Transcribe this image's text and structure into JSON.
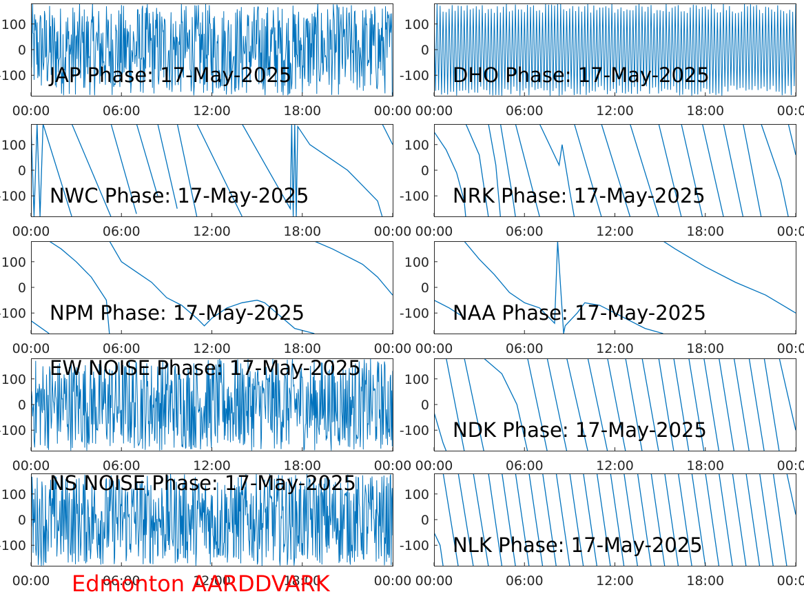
{
  "footer": {
    "text": "Edmonton AARDDVARK",
    "color": "#ff0000"
  },
  "series_color": "#0072bd",
  "chart_data": [
    {
      "type": "line",
      "title": "JAP Phase: 17-May-2025",
      "station": "JAP",
      "xticks": [
        "00:00",
        "06:00",
        "12:00",
        "18:00",
        "00:00"
      ],
      "yticks": [
        "100",
        "0",
        "-100"
      ],
      "xlim_hours": [
        0,
        24
      ],
      "ylim": [
        -180,
        180
      ],
      "signal_description": "noise-like phase, rapid wraps across full range"
    },
    {
      "type": "line",
      "title": "DHO Phase: 17-May-2025",
      "station": "DHO",
      "xticks": [
        "00:00",
        "06:00",
        "12:00",
        "18:00",
        "00:00"
      ],
      "yticks": [
        "100",
        "0",
        "-100"
      ],
      "xlim_hours": [
        0,
        24
      ],
      "ylim": [
        -180,
        180
      ],
      "signal_description": "dense regular phase wraps, approx. 120 per day"
    },
    {
      "type": "line",
      "title": "NWC Phase: 17-May-2025",
      "station": "NWC",
      "xticks": [
        "00:00",
        "06:00",
        "12:00",
        "18:00",
        "00:00"
      ],
      "yticks": [
        "100",
        "0",
        "-100"
      ],
      "xlim_hours": [
        0,
        24
      ],
      "ylim": [
        -180,
        180
      ],
      "points": [
        [
          0,
          180
        ],
        [
          0.2,
          -180
        ],
        [
          0.4,
          180
        ],
        [
          0.6,
          -180
        ],
        [
          0.8,
          180
        ],
        [
          2.7,
          -180
        ],
        [
          2.71,
          180
        ],
        [
          5.3,
          -180
        ],
        [
          5.31,
          180
        ],
        [
          7,
          -170
        ],
        [
          7.01,
          180
        ],
        [
          8.4,
          -100
        ],
        [
          8.41,
          180
        ],
        [
          9.7,
          -150
        ],
        [
          9.71,
          180
        ],
        [
          11,
          -180
        ],
        [
          11.01,
          180
        ],
        [
          14,
          -180
        ],
        [
          14.01,
          180
        ],
        [
          17.2,
          -150
        ],
        [
          17.3,
          180
        ],
        [
          17.4,
          -180
        ],
        [
          17.5,
          180
        ],
        [
          17.6,
          -180
        ],
        [
          17.7,
          170
        ],
        [
          18.5,
          100
        ],
        [
          20,
          40
        ],
        [
          21,
          0
        ],
        [
          22,
          -60
        ],
        [
          23,
          -120
        ],
        [
          23.3,
          -180
        ],
        [
          23.31,
          180
        ],
        [
          24,
          100
        ]
      ]
    },
    {
      "type": "line",
      "title": "NRK Phase: 17-May-2025",
      "station": "NRK",
      "xticks": [
        "00:00",
        "06:00",
        "12:00",
        "18:00",
        "00:00"
      ],
      "yticks": [
        "100",
        "0",
        "-100"
      ],
      "xlim_hours": [
        0,
        24
      ],
      "ylim": [
        -180,
        180
      ],
      "points": [
        [
          0,
          150
        ],
        [
          0.8,
          80
        ],
        [
          1.5,
          -10
        ],
        [
          2,
          -120
        ],
        [
          2.1,
          -180
        ],
        [
          2.11,
          180
        ],
        [
          3,
          60
        ],
        [
          3.6,
          -180
        ],
        [
          3.61,
          180
        ],
        [
          4.1,
          20
        ],
        [
          4.4,
          -180
        ],
        [
          4.41,
          180
        ],
        [
          5.2,
          -100
        ],
        [
          5.4,
          -180
        ],
        [
          5.41,
          180
        ],
        [
          7,
          -180
        ],
        [
          7.01,
          180
        ],
        [
          8.3,
          20
        ],
        [
          8.5,
          100
        ],
        [
          9,
          -80
        ],
        [
          9.3,
          -180
        ],
        [
          9.31,
          180
        ],
        [
          11.1,
          -180
        ],
        [
          11.11,
          180
        ],
        [
          13,
          -180
        ],
        [
          13.01,
          180
        ],
        [
          14.9,
          -180
        ],
        [
          14.91,
          180
        ],
        [
          16.4,
          -180
        ],
        [
          16.41,
          180
        ],
        [
          17.8,
          -180
        ],
        [
          17.81,
          180
        ],
        [
          19.2,
          -180
        ],
        [
          19.21,
          180
        ],
        [
          20.5,
          -180
        ],
        [
          20.51,
          180
        ],
        [
          21.7,
          -180
        ],
        [
          21.71,
          180
        ],
        [
          23,
          -40
        ],
        [
          23.5,
          -180
        ],
        [
          23.51,
          180
        ],
        [
          24,
          60
        ]
      ]
    },
    {
      "type": "line",
      "title": "NPM Phase: 17-May-2025",
      "station": "NPM",
      "xticks": [
        "00:00",
        "06:00",
        "12:00",
        "18:00",
        "00:00"
      ],
      "yticks": [
        "100",
        "0",
        "-100"
      ],
      "xlim_hours": [
        0,
        24
      ],
      "ylim": [
        -180,
        180
      ],
      "points": [
        [
          0,
          -130
        ],
        [
          1.2,
          -180
        ],
        [
          1.21,
          180
        ],
        [
          2,
          150
        ],
        [
          3,
          100
        ],
        [
          4,
          40
        ],
        [
          5,
          -50
        ],
        [
          5.2,
          -180
        ],
        [
          5.21,
          180
        ],
        [
          6,
          100
        ],
        [
          7,
          60
        ],
        [
          8,
          20
        ],
        [
          9,
          -40
        ],
        [
          10,
          -70
        ],
        [
          11,
          -120
        ],
        [
          11.5,
          -150
        ],
        [
          12,
          -120
        ],
        [
          13,
          -80
        ],
        [
          14,
          -60
        ],
        [
          15,
          -50
        ],
        [
          15.5,
          -60
        ],
        [
          16.5,
          -110
        ],
        [
          17.5,
          -160
        ],
        [
          18.8,
          -180
        ],
        [
          18.81,
          180
        ],
        [
          20,
          150
        ],
        [
          21,
          120
        ],
        [
          22,
          90
        ],
        [
          23,
          40
        ],
        [
          24,
          -30
        ]
      ]
    },
    {
      "type": "line",
      "title": "NAA Phase: 17-May-2025",
      "station": "NAA",
      "xticks": [
        "00:00",
        "06:00",
        "12:00",
        "18:00",
        "00:00"
      ],
      "yticks": [
        "100",
        "0",
        "-100"
      ],
      "xlim_hours": [
        0,
        24
      ],
      "ylim": [
        -180,
        180
      ],
      "points": [
        [
          0,
          -50
        ],
        [
          1,
          -80
        ],
        [
          1.8,
          -110
        ],
        [
          1.81,
          180
        ],
        [
          2,
          180
        ],
        [
          3,
          110
        ],
        [
          4,
          50
        ],
        [
          5,
          -20
        ],
        [
          6,
          -60
        ],
        [
          7,
          -80
        ],
        [
          7.5,
          -110
        ],
        [
          8,
          -140
        ],
        [
          8.2,
          180
        ],
        [
          8.6,
          -180
        ],
        [
          8.7,
          -150
        ],
        [
          9.5,
          -100
        ],
        [
          10,
          -60
        ],
        [
          11,
          -70
        ],
        [
          12,
          -100
        ],
        [
          13,
          -130
        ],
        [
          14,
          -160
        ],
        [
          15.2,
          -180
        ],
        [
          15.21,
          180
        ],
        [
          16,
          150
        ],
        [
          18,
          80
        ],
        [
          20,
          20
        ],
        [
          22,
          -30
        ],
        [
          24,
          -100
        ]
      ]
    },
    {
      "type": "line",
      "title": "EW NOISE Phase: 17-May-2025",
      "station": "EW NOISE",
      "xticks": [
        "00:00",
        "06:00",
        "12:00",
        "18:00",
        "00:00"
      ],
      "yticks": [
        "100",
        "0",
        "-100"
      ],
      "xlim_hours": [
        0,
        24
      ],
      "ylim": [
        -180,
        180
      ],
      "signal_description": "noise-like phase, rapid wraps across full range"
    },
    {
      "type": "line",
      "title": "NDK Phase: 17-May-2025",
      "station": "NDK",
      "xticks": [
        "00:00",
        "06:00",
        "12:00",
        "18:00",
        "00:00"
      ],
      "yticks": [
        "100",
        "0",
        "-100"
      ],
      "xlim_hours": [
        0,
        24
      ],
      "ylim": [
        -180,
        180
      ],
      "points": [
        [
          0,
          -30
        ],
        [
          0.6,
          -150
        ],
        [
          0.8,
          -180
        ],
        [
          0.81,
          180
        ],
        [
          2,
          -180
        ],
        [
          2.01,
          180
        ],
        [
          3.3,
          -180
        ],
        [
          3.31,
          180
        ],
        [
          4.5,
          120
        ],
        [
          5.5,
          0
        ],
        [
          6.2,
          -180
        ],
        [
          6.21,
          180
        ],
        [
          7.5,
          -180
        ],
        [
          7.51,
          180
        ],
        [
          8.8,
          -180
        ],
        [
          8.81,
          180
        ],
        [
          10.2,
          -180
        ],
        [
          10.21,
          180
        ],
        [
          11.5,
          -180
        ],
        [
          11.51,
          180
        ],
        [
          12.7,
          -180
        ],
        [
          12.71,
          180
        ],
        [
          13.8,
          -180
        ],
        [
          13.81,
          180
        ],
        [
          14.9,
          -180
        ],
        [
          14.91,
          180
        ],
        [
          15.9,
          -180
        ],
        [
          15.91,
          180
        ],
        [
          16.9,
          -180
        ],
        [
          16.91,
          180
        ],
        [
          17.9,
          -180
        ],
        [
          17.91,
          180
        ],
        [
          18.9,
          -180
        ],
        [
          18.91,
          180
        ],
        [
          19.9,
          -180
        ],
        [
          19.91,
          180
        ],
        [
          20.9,
          -180
        ],
        [
          20.91,
          180
        ],
        [
          21.9,
          -180
        ],
        [
          21.91,
          180
        ],
        [
          22.9,
          -180
        ],
        [
          22.91,
          180
        ],
        [
          24,
          -100
        ]
      ]
    },
    {
      "type": "line",
      "title": "NS NOISE Phase: 17-May-2025",
      "station": "NS NOISE",
      "xticks": [
        "00:00",
        "06:00",
        "12:00",
        "18:00",
        "00:00"
      ],
      "yticks": [
        "100",
        "0",
        "-100"
      ],
      "xlim_hours": [
        0,
        24
      ],
      "ylim": [
        -180,
        180
      ],
      "signal_description": "noise-like phase, rapid wraps across full range"
    },
    {
      "type": "line",
      "title": "NLK Phase: 17-May-2025",
      "station": "NLK",
      "xticks": [
        "00:00",
        "06:00",
        "12:00",
        "18:00",
        "00:00"
      ],
      "yticks": [
        "100",
        "0",
        "-100"
      ],
      "xlim_hours": [
        0,
        24
      ],
      "ylim": [
        -180,
        180
      ],
      "points": [
        [
          0,
          -50
        ],
        [
          0.4,
          -100
        ],
        [
          0.6,
          -180
        ],
        [
          0.61,
          180
        ],
        [
          1.6,
          -180
        ],
        [
          1.61,
          180
        ],
        [
          2.6,
          -180
        ],
        [
          2.61,
          180
        ],
        [
          3.6,
          -180
        ],
        [
          3.61,
          180
        ],
        [
          4.5,
          -180
        ],
        [
          4.51,
          180
        ],
        [
          5.4,
          -180
        ],
        [
          5.41,
          180
        ],
        [
          6.3,
          -180
        ],
        [
          6.31,
          180
        ],
        [
          7.2,
          -180
        ],
        [
          7.21,
          180
        ],
        [
          8.1,
          -180
        ],
        [
          8.11,
          180
        ],
        [
          9,
          -180
        ],
        [
          9.01,
          180
        ],
        [
          9.9,
          -180
        ],
        [
          9.91,
          180
        ],
        [
          10.8,
          -180
        ],
        [
          10.81,
          180
        ],
        [
          11.7,
          -180
        ],
        [
          11.71,
          180
        ],
        [
          12.6,
          -180
        ],
        [
          12.61,
          180
        ],
        [
          13.5,
          -180
        ],
        [
          13.51,
          180
        ],
        [
          14.4,
          -180
        ],
        [
          14.41,
          180
        ],
        [
          15.3,
          -180
        ],
        [
          15.31,
          180
        ],
        [
          16.2,
          -180
        ],
        [
          16.21,
          180
        ],
        [
          17.1,
          -180
        ],
        [
          17.11,
          180
        ],
        [
          18,
          -180
        ],
        [
          18.01,
          180
        ],
        [
          18.9,
          -180
        ],
        [
          18.91,
          180
        ],
        [
          19.8,
          -180
        ],
        [
          19.81,
          180
        ],
        [
          20.7,
          -180
        ],
        [
          20.71,
          180
        ],
        [
          21.6,
          -180
        ],
        [
          21.61,
          180
        ],
        [
          22.5,
          -180
        ],
        [
          22.51,
          180
        ],
        [
          23.4,
          -180
        ],
        [
          23.41,
          180
        ],
        [
          24,
          20
        ]
      ]
    }
  ]
}
